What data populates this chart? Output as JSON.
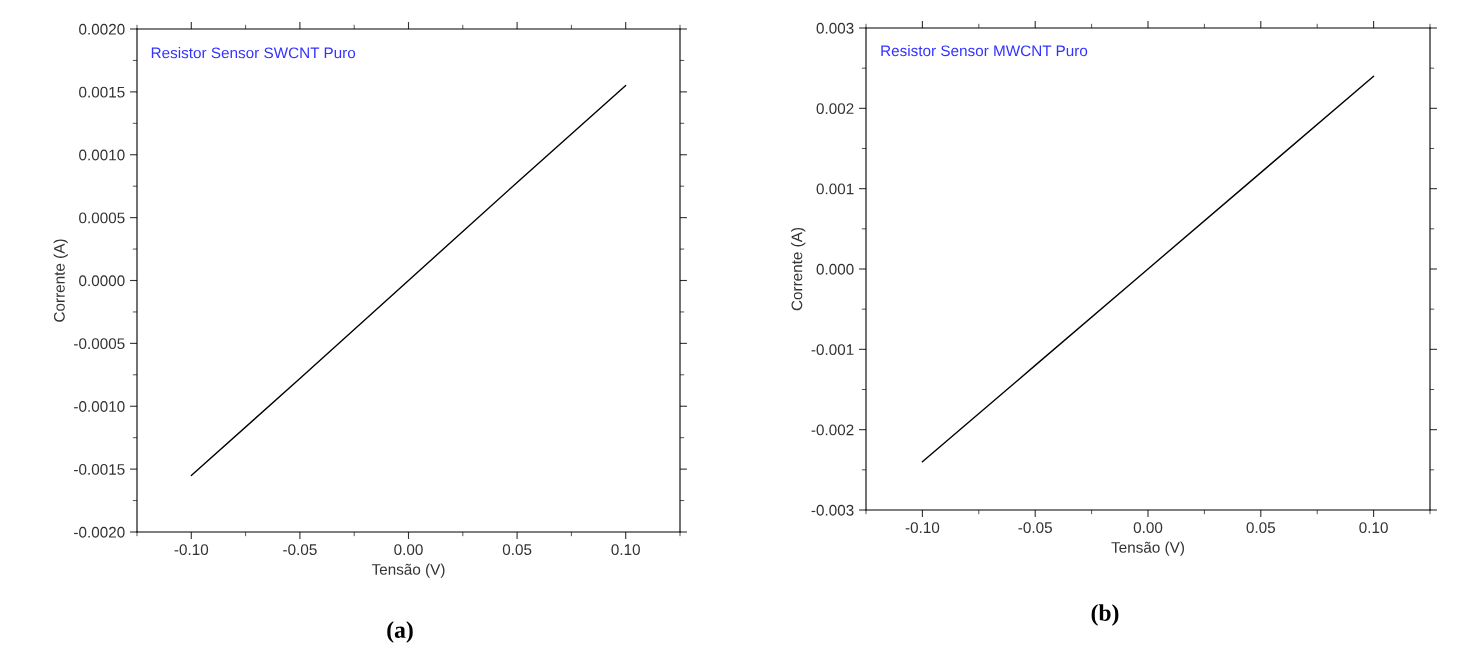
{
  "chart_data": [
    {
      "type": "line",
      "title": "Resistor Sensor SWCNT Puro",
      "xlabel": "Tensão (V)",
      "ylabel": "Corrente (A)",
      "annotations": [
        "(a)"
      ],
      "x": [
        -0.1,
        -0.05,
        0,
        0.05,
        0.1
      ],
      "series": [
        {
          "color": "#000000",
          "values": [
            -0.00155,
            -0.00078,
            0,
            0.00078,
            0.00155
          ]
        }
      ],
      "xlim": [
        -0.125,
        0.125
      ],
      "xticks": [
        {
          "value": -0.1,
          "label": "-0.10"
        },
        {
          "value": -0.05,
          "label": "-0.05"
        },
        {
          "value": 0,
          "label": "0.00"
        },
        {
          "value": 0.05,
          "label": "0.05"
        },
        {
          "value": 0.1,
          "label": "0.10"
        }
      ],
      "ylim": [
        -0.002,
        0.002
      ],
      "yticks": [
        {
          "value": -0.002,
          "label": "-0.0020"
        },
        {
          "value": -0.0015,
          "label": "-0.0015"
        },
        {
          "value": -0.001,
          "label": "-0.0010"
        },
        {
          "value": -0.0005,
          "label": "-0.0005"
        },
        {
          "value": 0,
          "label": "0.0000"
        },
        {
          "value": 0.0005,
          "label": "0.0005"
        },
        {
          "value": 0.001,
          "label": "0.0010"
        },
        {
          "value": 0.0015,
          "label": "0.0015"
        },
        {
          "value": 0.002,
          "label": "0.0020"
        }
      ],
      "grid": false,
      "legend": false,
      "marker": "none",
      "line_style": "solid"
    },
    {
      "type": "line",
      "title": "Resistor Sensor MWCNT Puro",
      "xlabel": "Tensão (V)",
      "ylabel": "Corrente (A)",
      "annotations": [
        "(b)"
      ],
      "x": [
        -0.1,
        -0.05,
        0,
        0.05,
        0.1
      ],
      "series": [
        {
          "color": "#000000",
          "values": [
            -0.0024,
            -0.0012,
            0,
            0.0012,
            0.0024
          ]
        }
      ],
      "xlim": [
        -0.125,
        0.125
      ],
      "xticks": [
        {
          "value": -0.1,
          "label": "-0.10"
        },
        {
          "value": -0.05,
          "label": "-0.05"
        },
        {
          "value": 0,
          "label": "0.00"
        },
        {
          "value": 0.05,
          "label": "0.05"
        },
        {
          "value": 0.1,
          "label": "0.10"
        }
      ],
      "ylim": [
        -0.003,
        0.003
      ],
      "yticks": [
        {
          "value": -0.003,
          "label": "-0.003"
        },
        {
          "value": -0.002,
          "label": "-0.002"
        },
        {
          "value": -0.001,
          "label": "-0.001"
        },
        {
          "value": 0,
          "label": "0.000"
        },
        {
          "value": 0.001,
          "label": "0.001"
        },
        {
          "value": 0.002,
          "label": "0.002"
        },
        {
          "value": 0.003,
          "label": "0.003"
        }
      ],
      "grid": false,
      "legend": false,
      "marker": "none",
      "line_style": "solid"
    }
  ]
}
